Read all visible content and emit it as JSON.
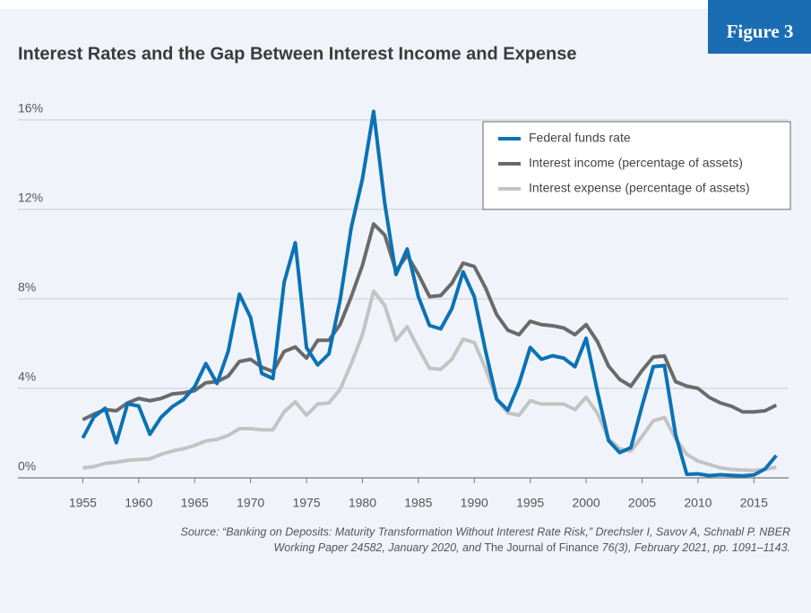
{
  "badge": "Figure 3",
  "chart_data": {
    "type": "line",
    "title": "Interest Rates and the Gap Between Interest Income and Expense",
    "x": [
      1955,
      1956,
      1957,
      1958,
      1959,
      1960,
      1961,
      1962,
      1963,
      1964,
      1965,
      1966,
      1967,
      1968,
      1969,
      1970,
      1971,
      1972,
      1973,
      1974,
      1975,
      1976,
      1977,
      1978,
      1979,
      1980,
      1981,
      1982,
      1983,
      1984,
      1985,
      1986,
      1987,
      1988,
      1989,
      1990,
      1991,
      1992,
      1993,
      1994,
      1995,
      1996,
      1997,
      1998,
      1999,
      2000,
      2001,
      2002,
      2003,
      2004,
      2005,
      2006,
      2007,
      2008,
      2009,
      2010,
      2011,
      2012,
      2013,
      2014,
      2015,
      2016,
      2017
    ],
    "series": [
      {
        "name": "Federal funds rate",
        "color": "#0b72b5",
        "values": [
          1.78,
          2.73,
          3.11,
          1.57,
          3.31,
          3.21,
          1.95,
          2.71,
          3.18,
          3.5,
          4.07,
          5.11,
          4.22,
          5.66,
          8.21,
          7.17,
          4.67,
          4.44,
          8.74,
          10.51,
          5.82,
          5.05,
          5.54,
          7.93,
          11.19,
          13.36,
          16.38,
          12.26,
          9.09,
          10.23,
          8.1,
          6.81,
          6.66,
          7.57,
          9.21,
          8.1,
          5.69,
          3.52,
          3.02,
          4.21,
          5.83,
          5.3,
          5.46,
          5.35,
          4.97,
          6.24,
          3.88,
          1.67,
          1.13,
          1.35,
          3.22,
          4.97,
          5.02,
          1.92,
          0.16,
          0.18,
          0.1,
          0.14,
          0.11,
          0.09,
          0.13,
          0.4,
          1.0
        ]
      },
      {
        "name": "Interest income (percentage of assets)",
        "color": "#6a6a6a",
        "values": [
          2.6,
          2.85,
          3.05,
          3.0,
          3.35,
          3.55,
          3.45,
          3.55,
          3.75,
          3.8,
          3.9,
          4.25,
          4.3,
          4.55,
          5.2,
          5.3,
          4.95,
          4.75,
          5.65,
          5.85,
          5.35,
          6.15,
          6.15,
          6.85,
          8.1,
          9.5,
          11.35,
          10.85,
          9.25,
          9.95,
          9.1,
          8.1,
          8.15,
          8.7,
          9.6,
          9.45,
          8.5,
          7.3,
          6.6,
          6.4,
          7.0,
          6.85,
          6.8,
          6.7,
          6.4,
          6.85,
          6.1,
          5.0,
          4.4,
          4.1,
          4.8,
          5.4,
          5.45,
          4.3,
          4.1,
          4.0,
          3.6,
          3.35,
          3.2,
          2.95,
          2.95,
          3.0,
          3.25
        ]
      },
      {
        "name": "Interest expense (percentage of assets)",
        "color": "#c3c3c3",
        "values": [
          0.45,
          0.5,
          0.65,
          0.7,
          0.78,
          0.82,
          0.85,
          1.05,
          1.2,
          1.3,
          1.45,
          1.65,
          1.72,
          1.9,
          2.2,
          2.2,
          2.15,
          2.15,
          2.95,
          3.4,
          2.8,
          3.3,
          3.35,
          3.95,
          5.1,
          6.4,
          8.35,
          7.7,
          6.15,
          6.75,
          5.8,
          4.9,
          4.85,
          5.3,
          6.2,
          6.05,
          4.9,
          3.5,
          2.9,
          2.8,
          3.45,
          3.3,
          3.3,
          3.3,
          3.05,
          3.6,
          2.9,
          1.75,
          1.3,
          1.2,
          1.85,
          2.55,
          2.7,
          1.75,
          1.05,
          0.75,
          0.6,
          0.45,
          0.38,
          0.35,
          0.33,
          0.38,
          0.48
        ]
      }
    ],
    "xlim": [
      1949.2,
      2018.1
    ],
    "xticks": [
      1955,
      1960,
      1965,
      1970,
      1975,
      1980,
      1985,
      1990,
      1995,
      2000,
      2005,
      2010,
      2015
    ],
    "ylim": [
      0,
      17
    ],
    "yticks": [
      {
        "value": 0,
        "label": "0%"
      },
      {
        "value": 4,
        "label": "4%"
      },
      {
        "value": 8,
        "label": "8%"
      },
      {
        "value": 12,
        "label": "12%"
      },
      {
        "value": 16,
        "label": "16%"
      }
    ],
    "grid": true,
    "legend": "upper right",
    "source": [
      "Source: “Banking on Deposits: Maturity Transformation Without Interest Rate Risk,” Drechsler I, Savov A, Schnabl P. NBER",
      "Working Paper 24582, January 2020, and ",
      "The Journal of Finance",
      " 76(3), February 2021, pp. 1091–1143."
    ]
  }
}
